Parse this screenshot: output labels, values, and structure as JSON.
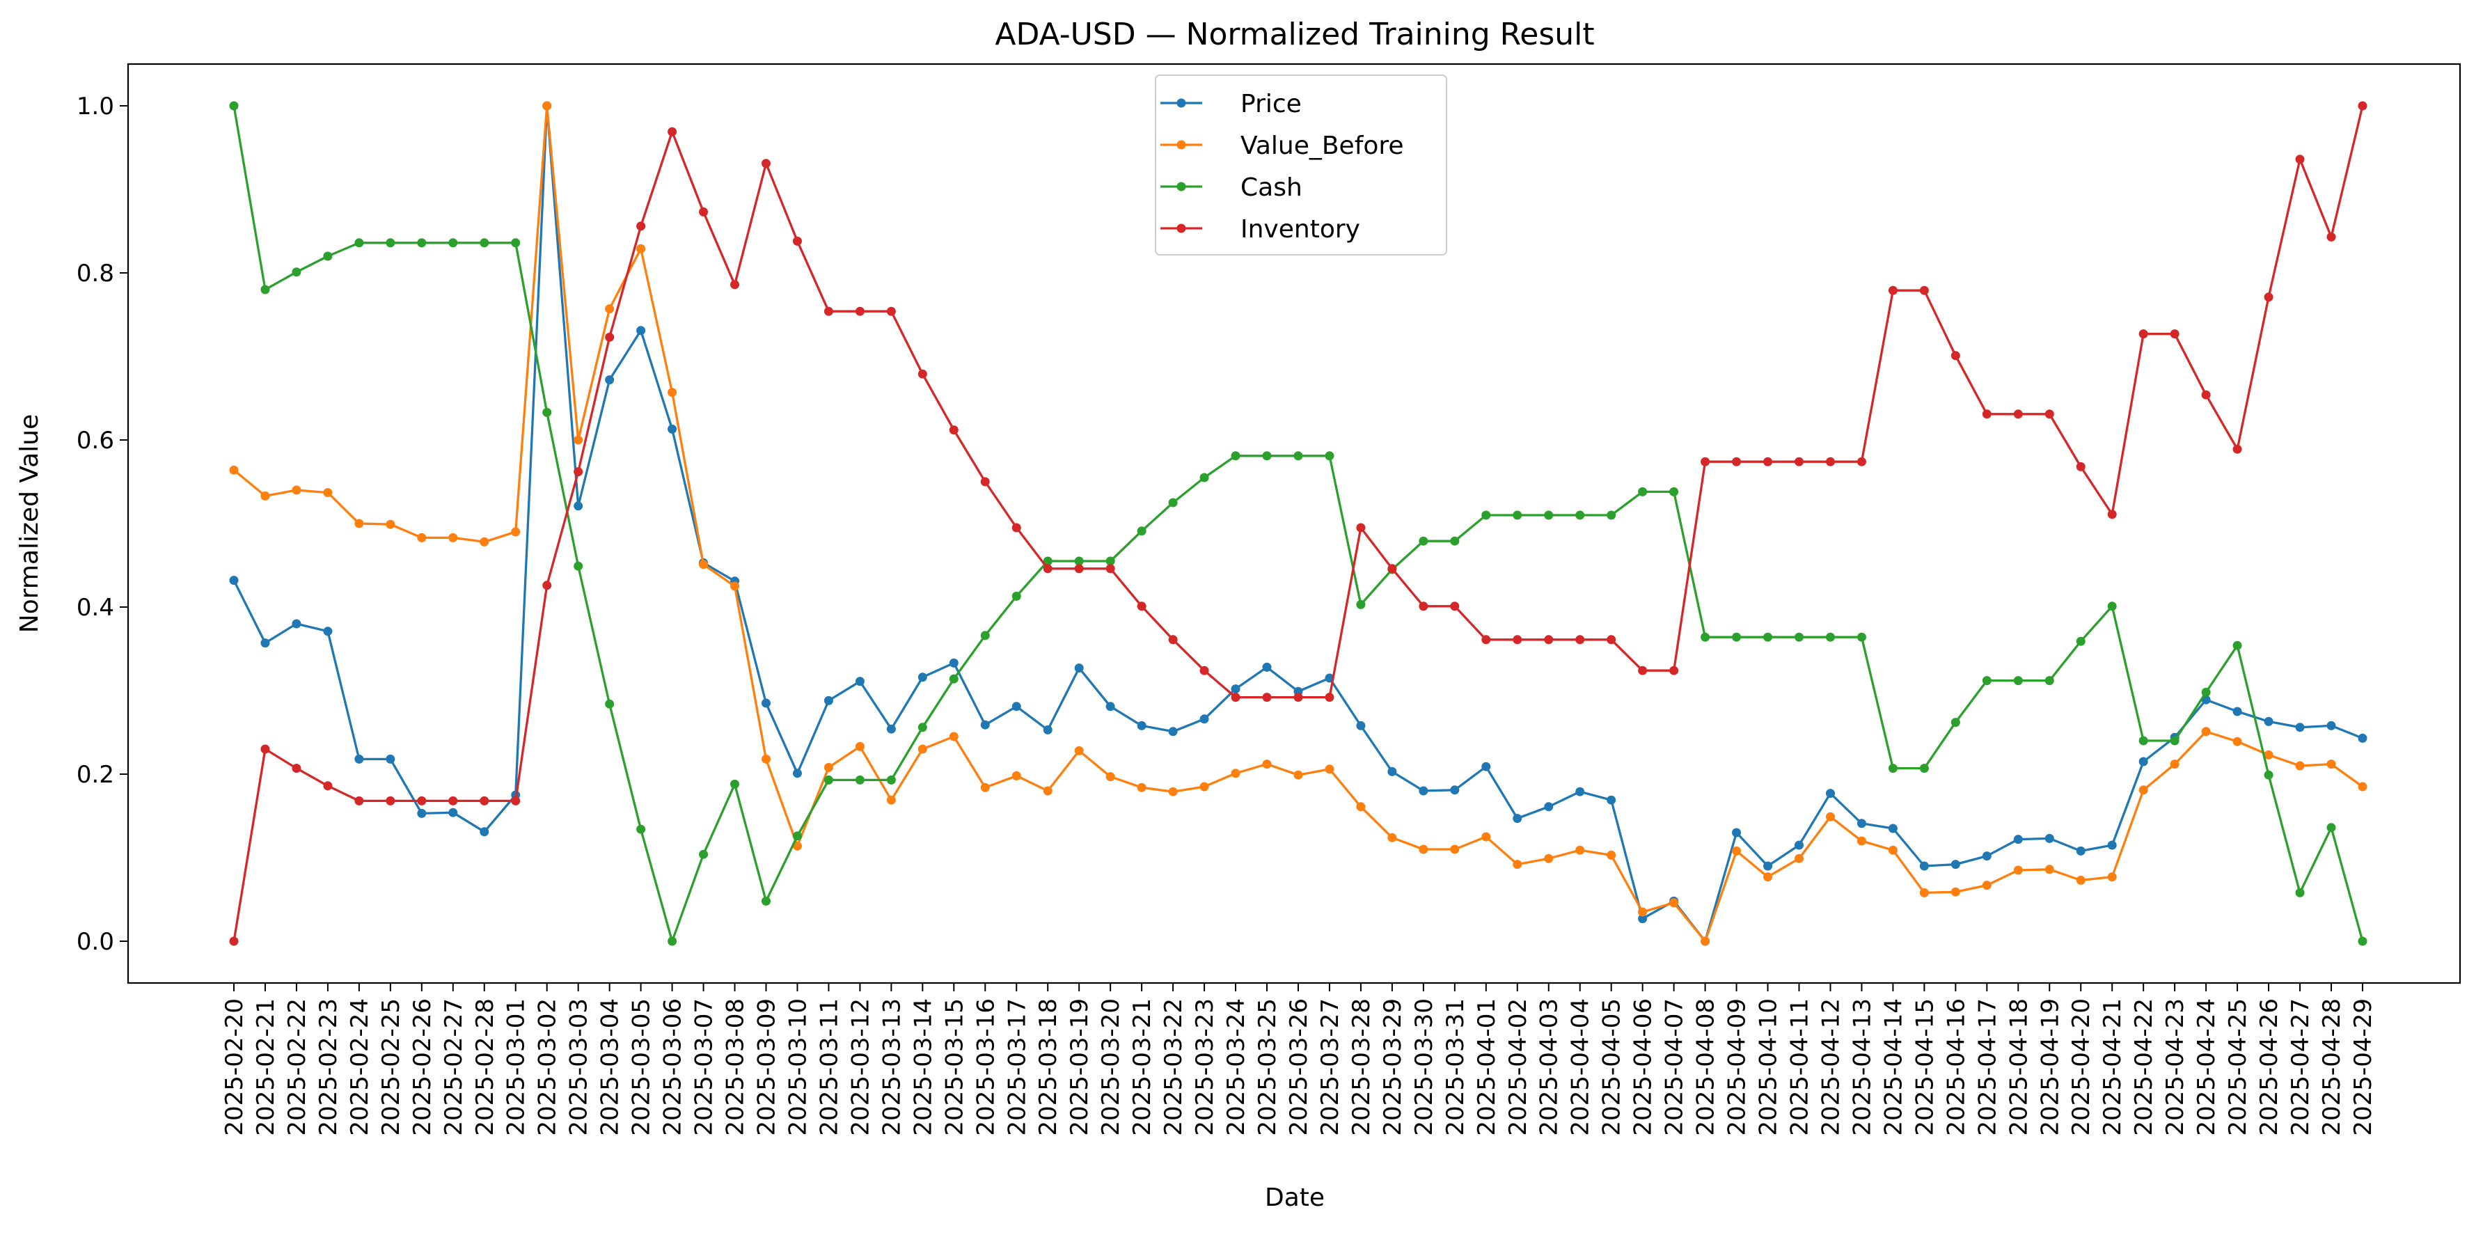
{
  "chart_data": {
    "type": "line",
    "title": "ADA-USD — Normalized Training Result",
    "xlabel": "Date",
    "ylabel": "Normalized Value",
    "ylim": [
      -0.05,
      1.05
    ],
    "yticks": [
      "0.0",
      "0.2",
      "0.4",
      "0.6",
      "0.8",
      "1.0"
    ],
    "grid": false,
    "legend_position": "top-center",
    "categories": [
      "2025-02-20",
      "2025-02-21",
      "2025-02-22",
      "2025-02-23",
      "2025-02-24",
      "2025-02-25",
      "2025-02-26",
      "2025-02-27",
      "2025-02-28",
      "2025-03-01",
      "2025-03-02",
      "2025-03-03",
      "2025-03-04",
      "2025-03-05",
      "2025-03-06",
      "2025-03-07",
      "2025-03-08",
      "2025-03-09",
      "2025-03-10",
      "2025-03-11",
      "2025-03-12",
      "2025-03-13",
      "2025-03-14",
      "2025-03-15",
      "2025-03-16",
      "2025-03-17",
      "2025-03-18",
      "2025-03-19",
      "2025-03-20",
      "2025-03-21",
      "2025-03-22",
      "2025-03-23",
      "2025-03-24",
      "2025-03-25",
      "2025-03-26",
      "2025-03-27",
      "2025-03-28",
      "2025-03-29",
      "2025-03-30",
      "2025-03-31",
      "2025-04-01",
      "2025-04-02",
      "2025-04-03",
      "2025-04-04",
      "2025-04-05",
      "2025-04-06",
      "2025-04-07",
      "2025-04-08",
      "2025-04-09",
      "2025-04-10",
      "2025-04-11",
      "2025-04-12",
      "2025-04-13",
      "2025-04-14",
      "2025-04-15",
      "2025-04-16",
      "2025-04-17",
      "2025-04-18",
      "2025-04-19",
      "2025-04-20",
      "2025-04-21",
      "2025-04-22",
      "2025-04-23",
      "2025-04-24",
      "2025-04-25",
      "2025-04-26",
      "2025-04-27",
      "2025-04-28",
      "2025-04-29"
    ],
    "series": [
      {
        "name": "Price",
        "color": "#1f77b4",
        "values": [
          0.432,
          0.357,
          0.38,
          0.371,
          0.218,
          0.218,
          0.153,
          0.154,
          0.131,
          0.175,
          1.0,
          0.521,
          0.672,
          0.731,
          0.613,
          0.453,
          0.431,
          0.285,
          0.201,
          0.288,
          0.311,
          0.254,
          0.316,
          0.333,
          0.259,
          0.281,
          0.253,
          0.327,
          0.281,
          0.258,
          0.251,
          0.266,
          0.302,
          0.328,
          0.299,
          0.315,
          0.258,
          0.203,
          0.18,
          0.181,
          0.209,
          0.147,
          0.161,
          0.179,
          0.169,
          0.027,
          0.048,
          0.0,
          0.13,
          0.09,
          0.115,
          0.177,
          0.141,
          0.135,
          0.09,
          0.092,
          0.102,
          0.122,
          0.123,
          0.108,
          0.115,
          0.215,
          0.244,
          0.289,
          0.275,
          0.263,
          0.256,
          0.258,
          0.243
        ]
      },
      {
        "name": "Value_Before",
        "color": "#ff7f0e",
        "values": [
          0.564,
          0.533,
          0.54,
          0.537,
          0.5,
          0.499,
          0.483,
          0.483,
          0.478,
          0.49,
          1.0,
          0.6,
          0.757,
          0.829,
          0.657,
          0.451,
          0.425,
          0.218,
          0.114,
          0.208,
          0.233,
          0.169,
          0.23,
          0.245,
          0.184,
          0.198,
          0.18,
          0.228,
          0.197,
          0.184,
          0.179,
          0.185,
          0.201,
          0.212,
          0.199,
          0.206,
          0.161,
          0.124,
          0.11,
          0.11,
          0.125,
          0.092,
          0.099,
          0.109,
          0.103,
          0.035,
          0.046,
          0.0,
          0.108,
          0.077,
          0.099,
          0.149,
          0.12,
          0.109,
          0.058,
          0.059,
          0.067,
          0.085,
          0.086,
          0.073,
          0.077,
          0.181,
          0.212,
          0.251,
          0.239,
          0.223,
          0.21,
          0.212,
          0.185
        ]
      },
      {
        "name": "Cash",
        "color": "#2ca02c",
        "values": [
          1.0,
          0.78,
          0.801,
          0.82,
          0.836,
          0.836,
          0.836,
          0.836,
          0.836,
          0.836,
          0.633,
          0.449,
          0.284,
          0.134,
          0.0,
          0.104,
          0.188,
          0.048,
          0.126,
          0.193,
          0.193,
          0.193,
          0.256,
          0.314,
          0.366,
          0.413,
          0.455,
          0.455,
          0.455,
          0.491,
          0.525,
          0.555,
          0.581,
          0.581,
          0.581,
          0.581,
          0.403,
          0.445,
          0.479,
          0.479,
          0.51,
          0.51,
          0.51,
          0.51,
          0.51,
          0.538,
          0.538,
          0.364,
          0.364,
          0.364,
          0.364,
          0.364,
          0.364,
          0.207,
          0.207,
          0.262,
          0.312,
          0.312,
          0.312,
          0.359,
          0.401,
          0.24,
          0.24,
          0.298,
          0.354,
          0.199,
          0.058,
          0.136,
          0.0
        ]
      },
      {
        "name": "Inventory",
        "color": "#d62728",
        "values": [
          0.0,
          0.23,
          0.207,
          0.186,
          0.168,
          0.168,
          0.168,
          0.168,
          0.168,
          0.168,
          0.426,
          0.562,
          0.723,
          0.856,
          0.969,
          0.873,
          0.786,
          0.931,
          0.838,
          0.754,
          0.754,
          0.754,
          0.679,
          0.612,
          0.55,
          0.495,
          0.446,
          0.446,
          0.446,
          0.401,
          0.361,
          0.324,
          0.292,
          0.292,
          0.292,
          0.292,
          0.495,
          0.446,
          0.401,
          0.401,
          0.361,
          0.361,
          0.361,
          0.361,
          0.361,
          0.324,
          0.324,
          0.574,
          0.574,
          0.574,
          0.574,
          0.574,
          0.574,
          0.779,
          0.779,
          0.701,
          0.631,
          0.631,
          0.631,
          0.568,
          0.511,
          0.727,
          0.727,
          0.654,
          0.589,
          0.771,
          0.936,
          0.843,
          1.0
        ]
      }
    ]
  }
}
